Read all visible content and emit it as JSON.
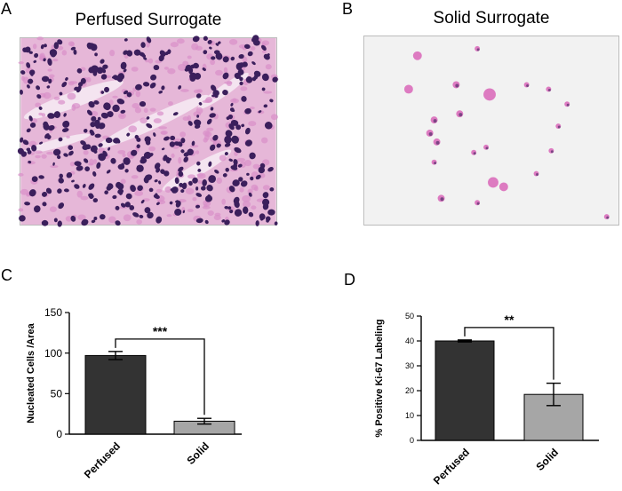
{
  "figure": {
    "panels": {
      "A": {
        "letter": "A",
        "title": "Perfused Surrogate",
        "image": "dense H&E stained tissue with many purple nuclei and pink stroma"
      },
      "B": {
        "letter": "B",
        "title": "Solid Surrogate",
        "image": "sparse scattered pink and purple cells on pale background"
      },
      "C": {
        "letter": "C"
      },
      "D": {
        "letter": "D"
      }
    },
    "colors": {
      "perfused_bar": "#333333",
      "solid_bar": "#a6a6a6",
      "tissue_bg": "#e6b7d8",
      "nucleus": "#3b1f5c",
      "stroma": "#d98fc9",
      "blank_bg": "#f2f2f2",
      "sparse_cell": "#d966b8"
    }
  },
  "chart_data": [
    {
      "type": "bar",
      "panel": "C",
      "categories": [
        "Perfused",
        "Solid"
      ],
      "values": [
        97,
        16
      ],
      "errors": [
        5,
        3.5
      ],
      "ylabel": "Nucleated Cells /Area",
      "ylim": [
        0,
        150
      ],
      "yticks": [
        0,
        50,
        100,
        150
      ],
      "significance": "***",
      "grid": false
    },
    {
      "type": "bar",
      "panel": "D",
      "categories": [
        "Perfused",
        "Solid"
      ],
      "values": [
        40,
        18.5
      ],
      "errors": [
        0.4,
        4.5
      ],
      "ylabel": "% Positive Ki-67 Labeling",
      "ylim": [
        0,
        50
      ],
      "yticks": [
        0,
        10,
        20,
        30,
        40,
        50
      ],
      "significance": "**",
      "grid": false
    }
  ]
}
